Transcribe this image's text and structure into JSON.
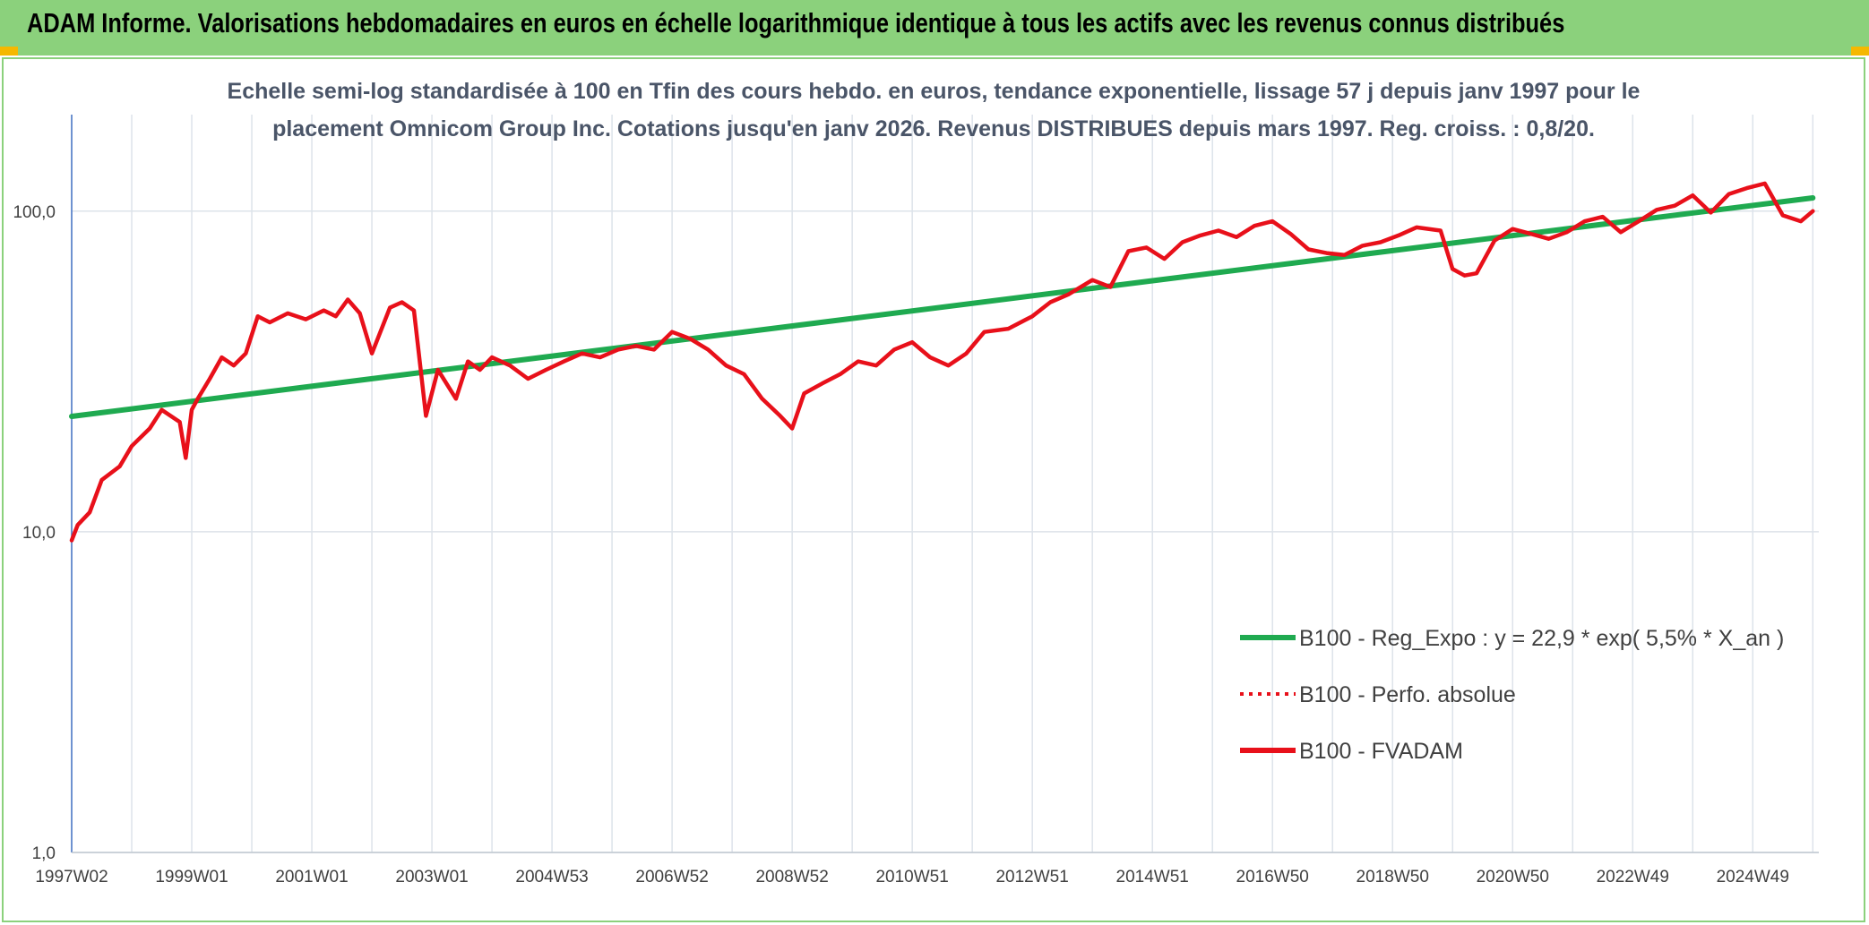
{
  "banner": {
    "title": "ADAM Informe. Valorisations hebdomadaires en euros en échelle logarithmique identique à tous les actifs avec les revenus connus distribués"
  },
  "chart_data": {
    "type": "line",
    "title_line1": "Echelle semi-log standardisée à 100 en Tfin des cours hebdo. en euros, tendance exponentielle, lissage 57 j depuis janv 1997 pour le",
    "title_line2": "placement Omnicom Group Inc. Cotations jusqu'en janv 2026. Revenus DISTRIBUES depuis mars 1997. Reg. croiss. : 0,8/20.",
    "y_scale": "log",
    "ylim": [
      1,
      200
    ],
    "y_ticks": [
      {
        "value": 1,
        "label": "1,0"
      },
      {
        "value": 10,
        "label": "10,0"
      },
      {
        "value": 100,
        "label": "100,0"
      }
    ],
    "xlim": [
      1997.0,
      2026.1
    ],
    "x_ticks": [
      {
        "value": 1997.0,
        "label": "1997W02"
      },
      {
        "value": 1999.0,
        "label": "1999W01"
      },
      {
        "value": 2001.0,
        "label": "2001W01"
      },
      {
        "value": 2003.0,
        "label": "2003W01"
      },
      {
        "value": 2005.0,
        "label": "2004W53"
      },
      {
        "value": 2007.0,
        "label": "2006W52"
      },
      {
        "value": 2009.0,
        "label": "2008W52"
      },
      {
        "value": 2011.0,
        "label": "2010W51"
      },
      {
        "value": 2013.0,
        "label": "2012W51"
      },
      {
        "value": 2015.0,
        "label": "2014W51"
      },
      {
        "value": 2017.0,
        "label": "2016W50"
      },
      {
        "value": 2019.0,
        "label": "2018W50"
      },
      {
        "value": 2021.0,
        "label": "2020W50"
      },
      {
        "value": 2023.0,
        "label": "2022W49"
      },
      {
        "value": 2025.0,
        "label": "2024W49"
      }
    ],
    "grid": true,
    "legend_position": "bottom-right",
    "series": [
      {
        "name": "B100 - Reg_Expo : y = 22,9 * exp( 5,5% *  X_an )",
        "color": "#1faa50",
        "style": "solid",
        "x": [
          1997.0,
          2026.0
        ],
        "y": [
          22.9,
          110
        ]
      },
      {
        "name": "B100 - Perfo. absolue",
        "color": "#e8101a",
        "style": "dotted",
        "x": [],
        "y": []
      },
      {
        "name": "B100 - FVADAM",
        "color": "#e8101a",
        "style": "solid",
        "x": [
          1997.0,
          1997.1,
          1997.3,
          1997.5,
          1997.8,
          1998.0,
          1998.3,
          1998.5,
          1998.8,
          1998.9,
          1999.0,
          1999.1,
          1999.3,
          1999.5,
          1999.7,
          1999.9,
          2000.1,
          2000.3,
          2000.6,
          2000.9,
          2001.2,
          2001.4,
          2001.6,
          2001.8,
          2002.0,
          2002.3,
          2002.5,
          2002.7,
          2002.9,
          2003.1,
          2003.4,
          2003.6,
          2003.8,
          2004.0,
          2004.3,
          2004.6,
          2004.9,
          2005.2,
          2005.5,
          2005.8,
          2006.1,
          2006.4,
          2006.7,
          2007.0,
          2007.3,
          2007.6,
          2007.9,
          2008.2,
          2008.5,
          2008.8,
          2009.0,
          2009.2,
          2009.5,
          2009.8,
          2010.1,
          2010.4,
          2010.7,
          2011.0,
          2011.3,
          2011.6,
          2011.9,
          2012.2,
          2012.6,
          2013.0,
          2013.3,
          2013.6,
          2014.0,
          2014.3,
          2014.6,
          2014.9,
          2015.2,
          2015.5,
          2015.8,
          2016.1,
          2016.4,
          2016.7,
          2017.0,
          2017.3,
          2017.6,
          2017.9,
          2018.2,
          2018.5,
          2018.8,
          2019.1,
          2019.4,
          2019.8,
          2020.0,
          2020.2,
          2020.4,
          2020.7,
          2021.0,
          2021.3,
          2021.6,
          2021.9,
          2022.2,
          2022.5,
          2022.8,
          2023.1,
          2023.4,
          2023.7,
          2024.0,
          2024.3,
          2024.6,
          2024.9,
          2025.2,
          2025.5,
          2025.8,
          2026.0
        ],
        "y": [
          9.4,
          10.5,
          11.5,
          14.5,
          16,
          18.5,
          21,
          24,
          22,
          17,
          24,
          26,
          30,
          35,
          33,
          36,
          47,
          45,
          48,
          46,
          49,
          47,
          53,
          48,
          36,
          50,
          52,
          49,
          23,
          32,
          26,
          34,
          32,
          35,
          33,
          30,
          32,
          34,
          36,
          35,
          37,
          38,
          37,
          42,
          40,
          37,
          33,
          31,
          26,
          23,
          21,
          27,
          29,
          31,
          34,
          33,
          37,
          39,
          35,
          33,
          36,
          42,
          43,
          47,
          52,
          55,
          61,
          58,
          75,
          77,
          71,
          80,
          84,
          87,
          83,
          90,
          93,
          85,
          76,
          74,
          73,
          78,
          80,
          84,
          89,
          87,
          66,
          63,
          64,
          81,
          88,
          85,
          82,
          86,
          93,
          96,
          86,
          93,
          101,
          104,
          112,
          99,
          113,
          118,
          122,
          97,
          93,
          100
        ]
      }
    ]
  }
}
